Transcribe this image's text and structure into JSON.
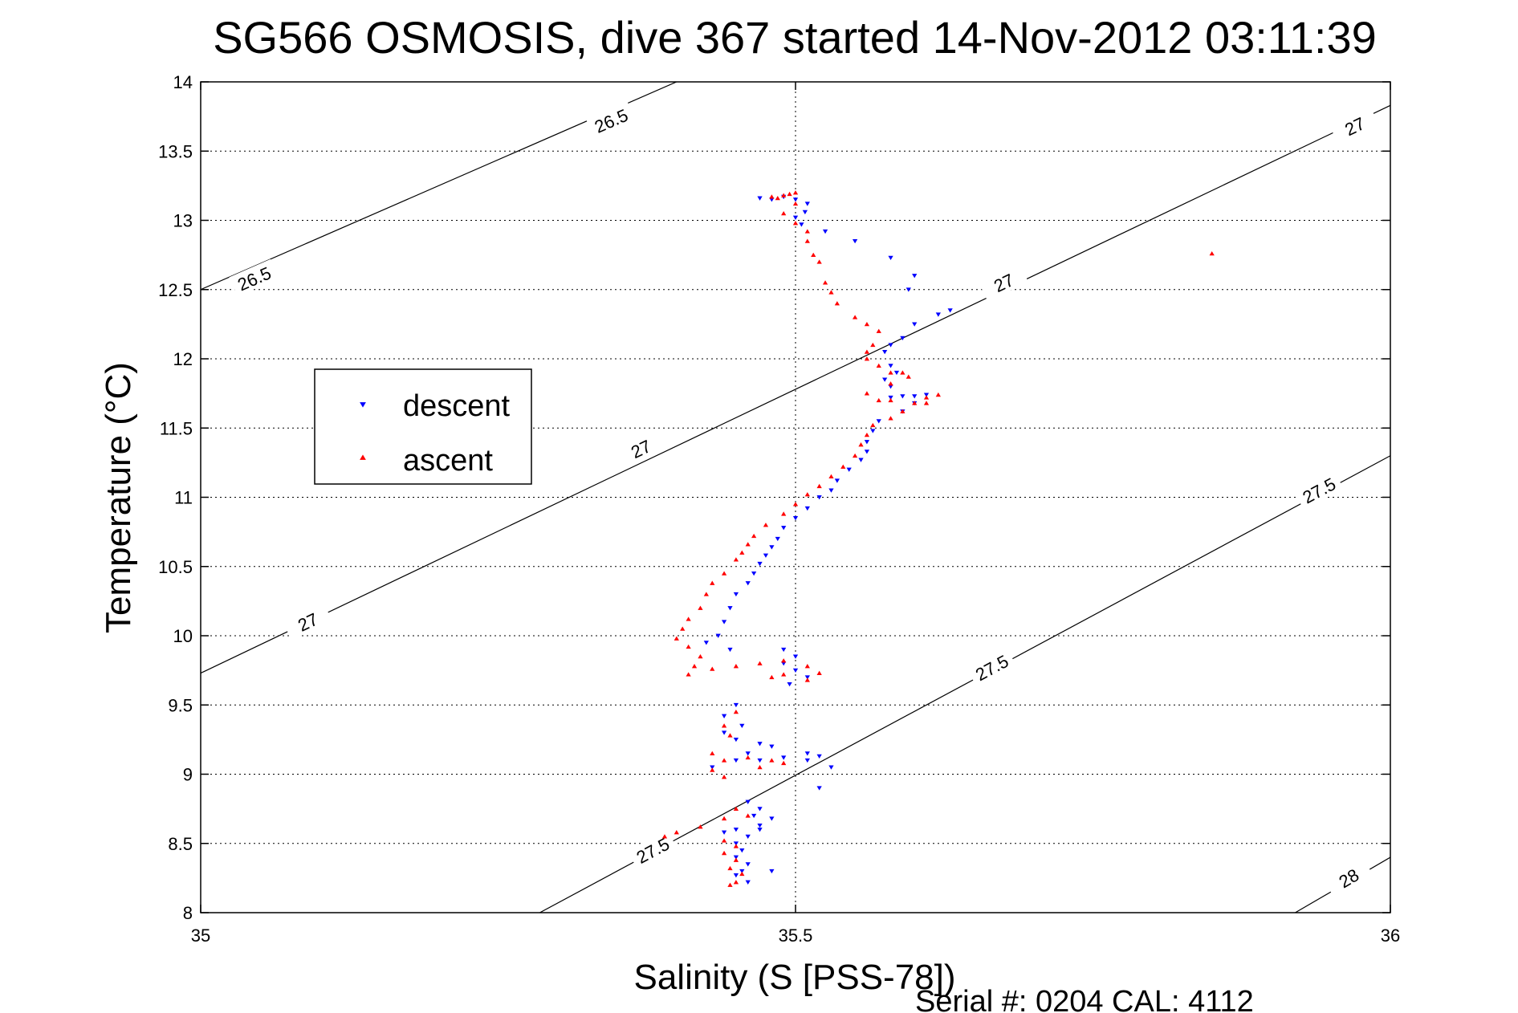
{
  "chart_data": {
    "type": "scatter",
    "title": "SG566 OSMOSIS, dive 367 started 14-Nov-2012 03:11:39",
    "xlabel": "Salinity (S [PSS-78])",
    "ylabel": "Temperature (°C)",
    "xlim": [
      35,
      36
    ],
    "ylim": [
      8,
      14
    ],
    "xticks": [
      35,
      35.5,
      36
    ],
    "yticks": [
      8,
      8.5,
      9,
      9.5,
      10,
      10.5,
      11,
      11.5,
      12,
      12.5,
      13,
      13.5,
      14
    ],
    "xtick_labels": [
      "35",
      "35.5",
      "36"
    ],
    "ytick_labels": [
      "8",
      "8.5",
      "9",
      "9.5",
      "10",
      "10.5",
      "11",
      "11.5",
      "12",
      "12.5",
      "13",
      "13.5",
      "14"
    ],
    "grid": true,
    "legend_position": "left",
    "footer": "Serial #: 0204  CAL: 4112",
    "density_contours": [
      {
        "label": "26.5",
        "line": [
          [
            35.0,
            12.5
          ],
          [
            35.4,
            14.0
          ]
        ],
        "label_positions": [
          [
            35.045,
            12.58
          ],
          [
            35.345,
            13.72
          ]
        ]
      },
      {
        "label": "27",
        "line": [
          [
            35.0,
            9.73
          ],
          [
            36.0,
            13.83
          ]
        ],
        "label_positions": [
          [
            35.09,
            10.1
          ],
          [
            35.37,
            11.35
          ],
          [
            35.675,
            12.55
          ],
          [
            35.97,
            13.68
          ]
        ]
      },
      {
        "label": "27.5",
        "line": [
          [
            35.285,
            8.0
          ],
          [
            36.0,
            11.3
          ]
        ],
        "label_positions": [
          [
            35.38,
            8.45
          ],
          [
            35.665,
            9.77
          ],
          [
            35.94,
            11.05
          ]
        ]
      },
      {
        "label": "28",
        "line": [
          [
            35.92,
            8.0
          ],
          [
            36.0,
            8.4
          ]
        ],
        "label_positions": [
          [
            35.965,
            8.25
          ]
        ]
      }
    ],
    "series": [
      {
        "name": "descent",
        "marker": "triangle-down",
        "color": "#0000ff",
        "points": [
          [
            35.47,
            13.16
          ],
          [
            35.48,
            13.15
          ],
          [
            35.49,
            13.17
          ],
          [
            35.5,
            13.15
          ],
          [
            35.51,
            13.12
          ],
          [
            35.508,
            13.06
          ],
          [
            35.5,
            13.02
          ],
          [
            35.505,
            12.97
          ],
          [
            35.525,
            12.92
          ],
          [
            35.55,
            12.85
          ],
          [
            35.58,
            12.73
          ],
          [
            35.6,
            12.6
          ],
          [
            35.595,
            12.5
          ],
          [
            35.62,
            12.32
          ],
          [
            35.63,
            12.35
          ],
          [
            35.6,
            12.25
          ],
          [
            35.59,
            12.15
          ],
          [
            35.58,
            12.1
          ],
          [
            35.575,
            12.05
          ],
          [
            35.58,
            11.95
          ],
          [
            35.585,
            11.9
          ],
          [
            35.575,
            11.85
          ],
          [
            35.58,
            11.8
          ],
          [
            35.58,
            11.72
          ],
          [
            35.59,
            11.73
          ],
          [
            35.6,
            11.73
          ],
          [
            35.61,
            11.74
          ],
          [
            35.6,
            11.68
          ],
          [
            35.59,
            11.62
          ],
          [
            35.57,
            11.55
          ],
          [
            35.565,
            11.48
          ],
          [
            35.56,
            11.4
          ],
          [
            35.56,
            11.33
          ],
          [
            35.555,
            11.27
          ],
          [
            35.545,
            11.2
          ],
          [
            35.535,
            11.12
          ],
          [
            35.53,
            11.05
          ],
          [
            35.52,
            11.0
          ],
          [
            35.51,
            10.92
          ],
          [
            35.5,
            10.85
          ],
          [
            35.49,
            10.78
          ],
          [
            35.485,
            10.7
          ],
          [
            35.48,
            10.64
          ],
          [
            35.475,
            10.58
          ],
          [
            35.47,
            10.52
          ],
          [
            35.465,
            10.45
          ],
          [
            35.46,
            10.38
          ],
          [
            35.45,
            10.3
          ],
          [
            35.445,
            10.2
          ],
          [
            35.44,
            10.1
          ],
          [
            35.435,
            10.0
          ],
          [
            35.425,
            9.95
          ],
          [
            35.445,
            9.9
          ],
          [
            35.49,
            9.9
          ],
          [
            35.5,
            9.85
          ],
          [
            35.49,
            9.8
          ],
          [
            35.5,
            9.75
          ],
          [
            35.51,
            9.7
          ],
          [
            35.495,
            9.65
          ],
          [
            35.45,
            9.5
          ],
          [
            35.44,
            9.42
          ],
          [
            35.455,
            9.35
          ],
          [
            35.44,
            9.3
          ],
          [
            35.45,
            9.25
          ],
          [
            35.47,
            9.22
          ],
          [
            35.48,
            9.2
          ],
          [
            35.46,
            9.15
          ],
          [
            35.45,
            9.1
          ],
          [
            35.43,
            9.05
          ],
          [
            35.47,
            9.1
          ],
          [
            35.49,
            9.12
          ],
          [
            35.51,
            9.15
          ],
          [
            35.52,
            9.13
          ],
          [
            35.51,
            9.1
          ],
          [
            35.53,
            9.05
          ],
          [
            35.52,
            8.9
          ],
          [
            35.46,
            8.8
          ],
          [
            35.47,
            8.75
          ],
          [
            35.465,
            8.7
          ],
          [
            35.48,
            8.68
          ],
          [
            35.47,
            8.63
          ],
          [
            35.45,
            8.6
          ],
          [
            35.44,
            8.58
          ],
          [
            35.46,
            8.55
          ],
          [
            35.45,
            8.5
          ],
          [
            35.455,
            8.45
          ],
          [
            35.45,
            8.4
          ],
          [
            35.46,
            8.35
          ],
          [
            35.455,
            8.3
          ],
          [
            35.45,
            8.27
          ],
          [
            35.46,
            8.22
          ],
          [
            35.48,
            8.3
          ],
          [
            35.47,
            8.6
          ]
        ]
      },
      {
        "name": "ascent",
        "marker": "triangle-up",
        "color": "#ff0000",
        "points": [
          [
            35.48,
            13.17
          ],
          [
            35.49,
            13.18
          ],
          [
            35.5,
            13.2
          ],
          [
            35.495,
            13.19
          ],
          [
            35.485,
            13.16
          ],
          [
            35.5,
            13.12
          ],
          [
            35.49,
            13.05
          ],
          [
            35.5,
            12.98
          ],
          [
            35.51,
            12.92
          ],
          [
            35.51,
            12.85
          ],
          [
            35.515,
            12.75
          ],
          [
            35.52,
            12.7
          ],
          [
            35.525,
            12.55
          ],
          [
            35.53,
            12.48
          ],
          [
            35.535,
            12.4
          ],
          [
            35.55,
            12.3
          ],
          [
            35.56,
            12.25
          ],
          [
            35.57,
            12.2
          ],
          [
            35.565,
            12.1
          ],
          [
            35.56,
            12.05
          ],
          [
            35.56,
            12.0
          ],
          [
            35.57,
            11.95
          ],
          [
            35.58,
            11.9
          ],
          [
            35.59,
            11.9
          ],
          [
            35.595,
            11.87
          ],
          [
            35.58,
            11.82
          ],
          [
            35.56,
            11.75
          ],
          [
            35.57,
            11.7
          ],
          [
            35.58,
            11.7
          ],
          [
            35.6,
            11.68
          ],
          [
            35.61,
            11.72
          ],
          [
            35.62,
            11.74
          ],
          [
            35.61,
            11.68
          ],
          [
            35.59,
            11.62
          ],
          [
            35.58,
            11.57
          ],
          [
            35.565,
            11.52
          ],
          [
            35.56,
            11.45
          ],
          [
            35.555,
            11.38
          ],
          [
            35.55,
            11.3
          ],
          [
            35.54,
            11.22
          ],
          [
            35.53,
            11.15
          ],
          [
            35.52,
            11.08
          ],
          [
            35.51,
            11.02
          ],
          [
            35.5,
            10.95
          ],
          [
            35.49,
            10.88
          ],
          [
            35.475,
            10.8
          ],
          [
            35.465,
            10.72
          ],
          [
            35.46,
            10.66
          ],
          [
            35.455,
            10.6
          ],
          [
            35.45,
            10.55
          ],
          [
            35.44,
            10.45
          ],
          [
            35.43,
            10.38
          ],
          [
            35.425,
            10.3
          ],
          [
            35.42,
            10.2
          ],
          [
            35.41,
            10.12
          ],
          [
            35.405,
            10.05
          ],
          [
            35.4,
            9.98
          ],
          [
            35.41,
            9.92
          ],
          [
            35.42,
            9.85
          ],
          [
            35.415,
            9.78
          ],
          [
            35.41,
            9.72
          ],
          [
            35.43,
            9.76
          ],
          [
            35.45,
            9.78
          ],
          [
            35.47,
            9.8
          ],
          [
            35.49,
            9.82
          ],
          [
            35.51,
            9.78
          ],
          [
            35.52,
            9.73
          ],
          [
            35.51,
            9.68
          ],
          [
            35.49,
            9.72
          ],
          [
            35.48,
            9.7
          ],
          [
            35.45,
            9.45
          ],
          [
            35.44,
            9.35
          ],
          [
            35.445,
            9.28
          ],
          [
            35.43,
            9.15
          ],
          [
            35.44,
            9.1
          ],
          [
            35.46,
            9.12
          ],
          [
            35.48,
            9.1
          ],
          [
            35.49,
            9.08
          ],
          [
            35.47,
            9.05
          ],
          [
            35.43,
            9.03
          ],
          [
            35.44,
            8.98
          ],
          [
            35.45,
            8.75
          ],
          [
            35.46,
            8.7
          ],
          [
            35.44,
            8.68
          ],
          [
            35.42,
            8.62
          ],
          [
            35.4,
            8.58
          ],
          [
            35.39,
            8.55
          ],
          [
            35.44,
            8.52
          ],
          [
            35.45,
            8.48
          ],
          [
            35.44,
            8.43
          ],
          [
            35.45,
            8.38
          ],
          [
            35.445,
            8.32
          ],
          [
            35.455,
            8.28
          ],
          [
            35.45,
            8.22
          ],
          [
            35.445,
            8.2
          ],
          [
            35.85,
            12.76
          ]
        ]
      }
    ]
  }
}
